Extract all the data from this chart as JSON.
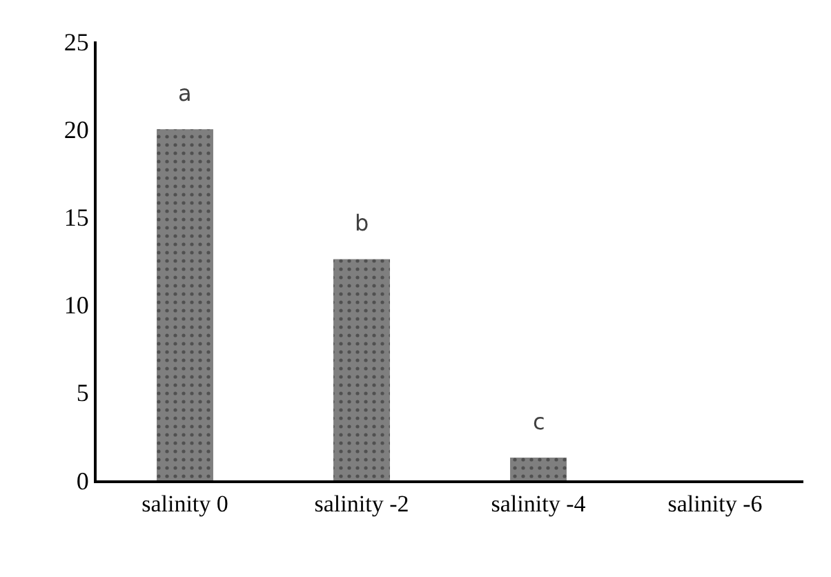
{
  "chart_data": {
    "type": "bar",
    "categories": [
      "salinity 0",
      "salinity -2",
      "salinity -4",
      "salinity -6"
    ],
    "values": [
      20,
      12.6,
      1.3,
      0
    ],
    "color": "#7f7f7f",
    "ylim": [
      0,
      25
    ],
    "yticks": [
      0,
      5,
      10,
      15,
      20,
      25
    ],
    "annotations": [
      {
        "text": "a",
        "x": "salinity 0",
        "y": 20
      },
      {
        "text": "b",
        "x": "salinity -2",
        "y": 12.6
      },
      {
        "text": "c",
        "x": "salinity -4",
        "y": 1.3
      }
    ]
  }
}
